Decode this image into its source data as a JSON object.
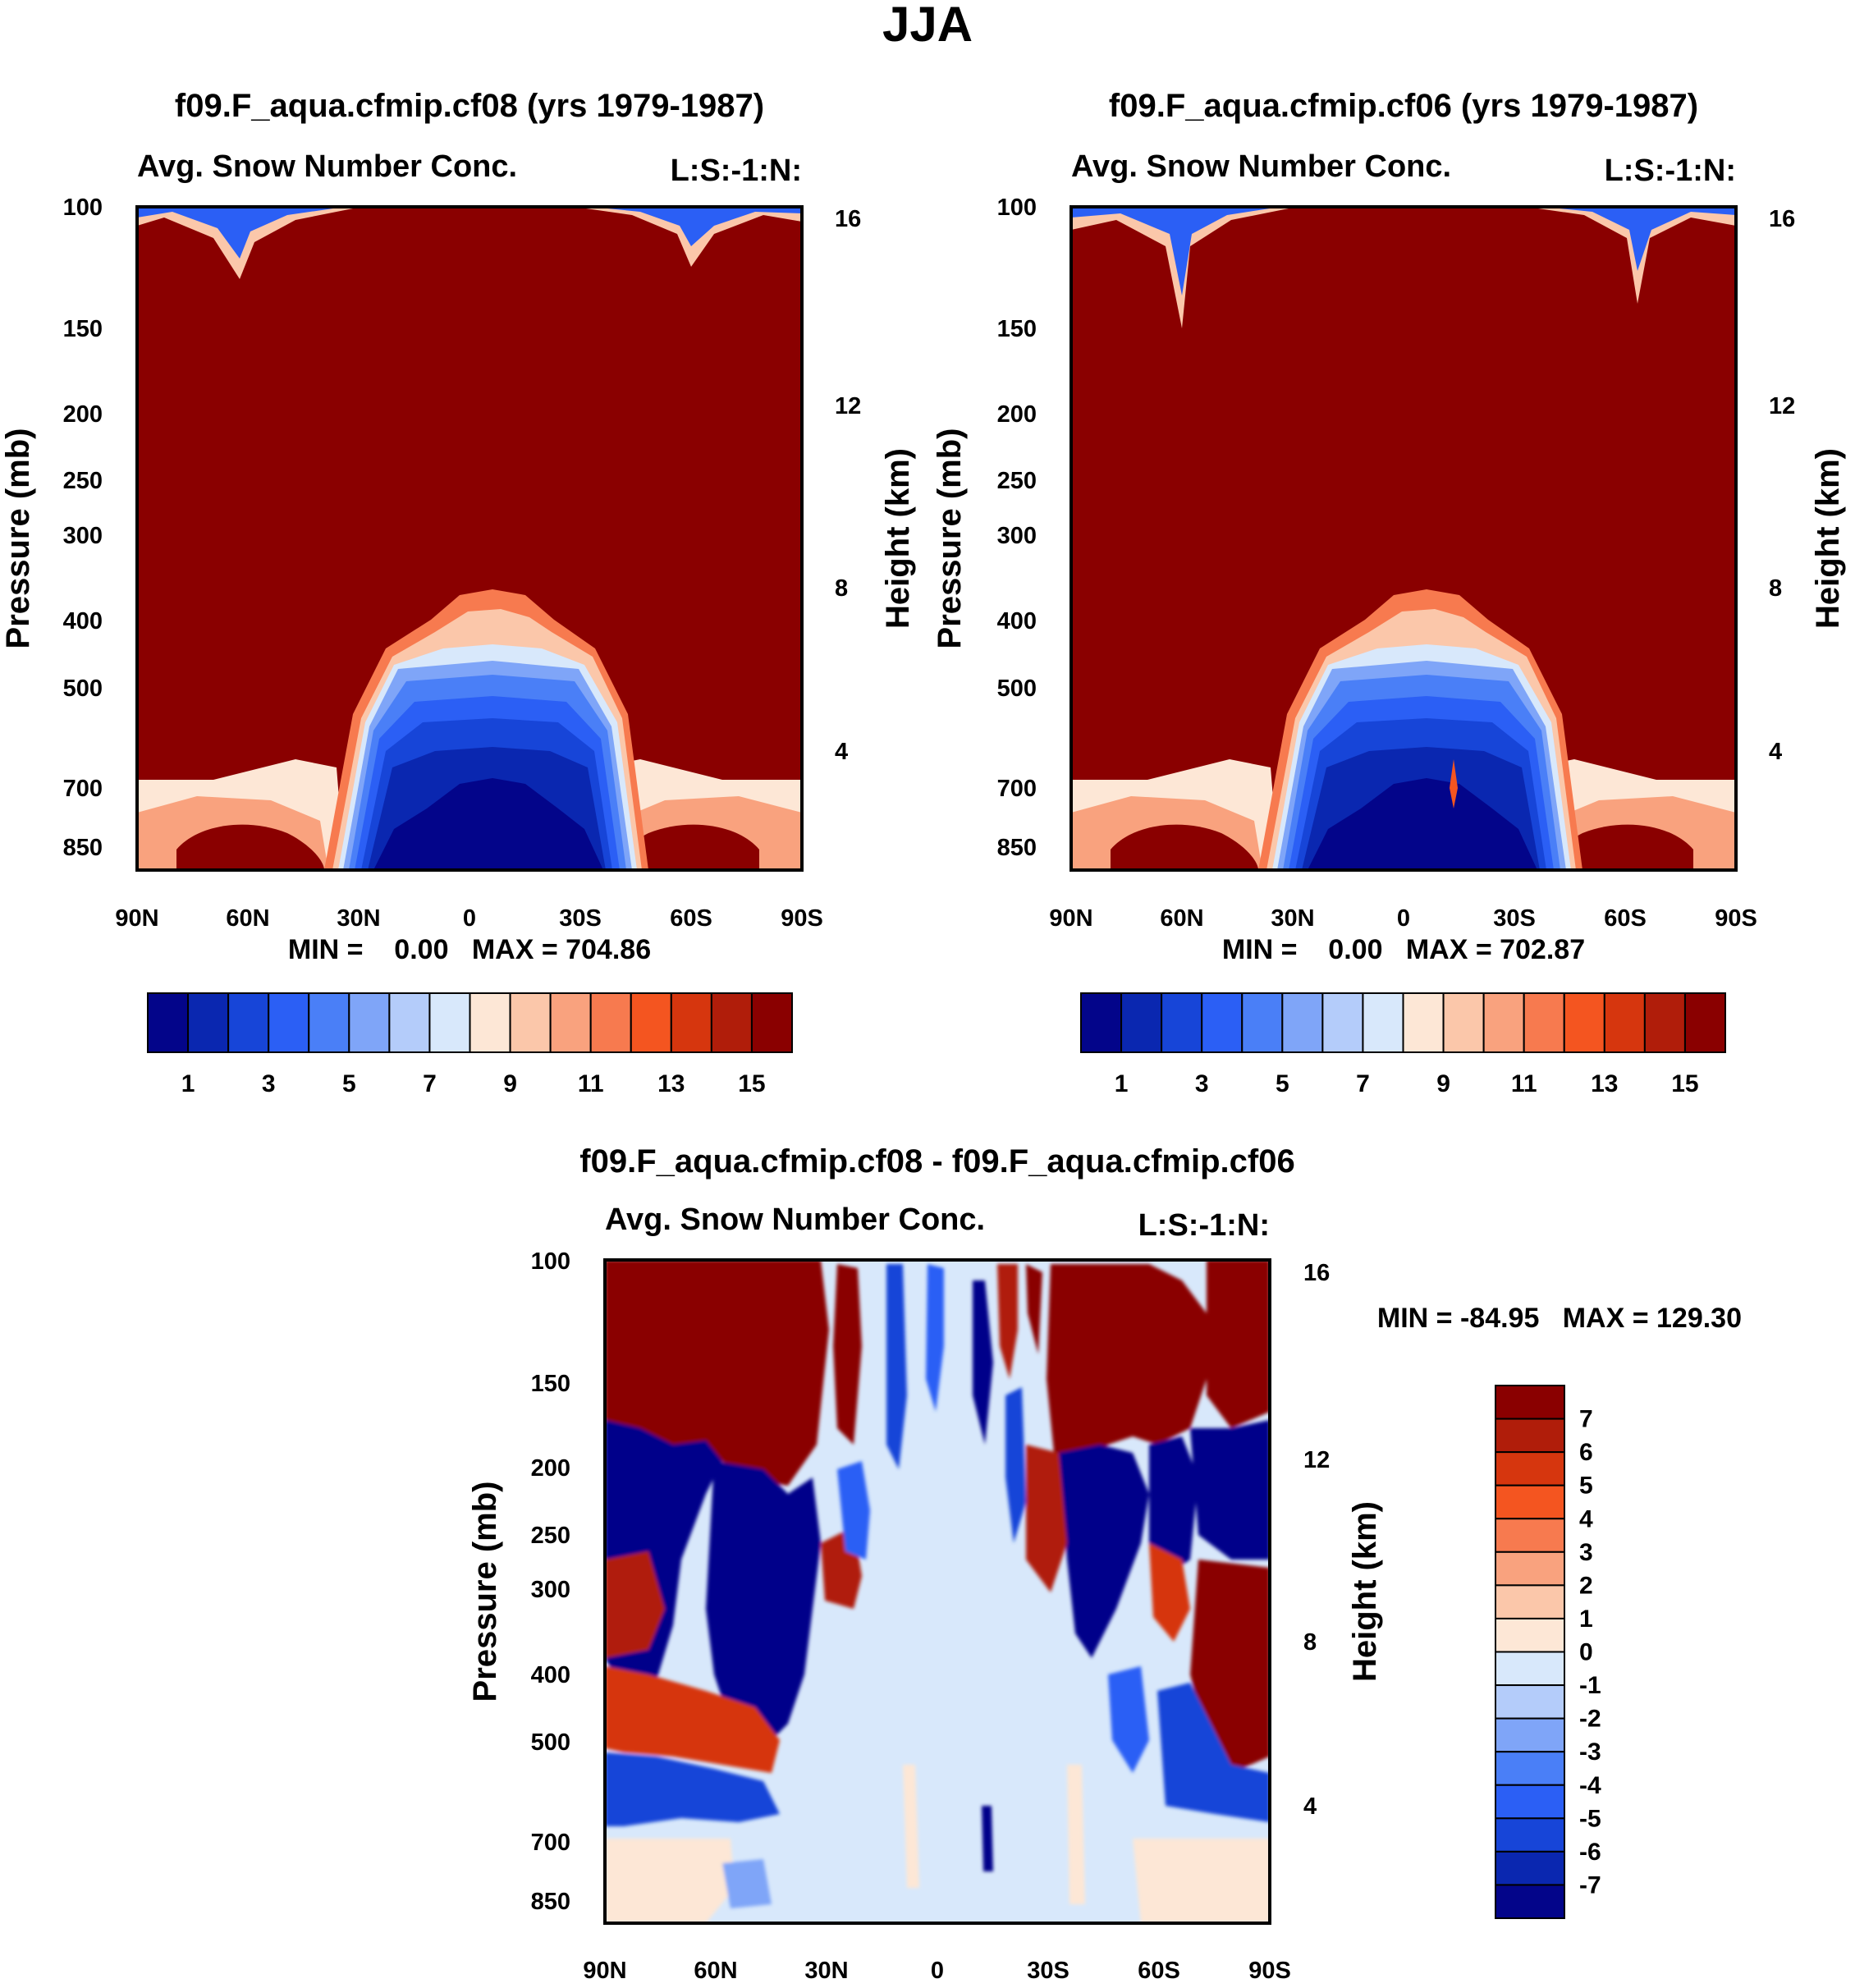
{
  "figure_title": "JJA",
  "chart_data": [
    {
      "type": "heatmap",
      "id": "panel1",
      "title": "f09.F_aqua.cfmip.cf08 (yrs 1979-1987)",
      "subtitle_left": "Avg. Snow Number Conc.",
      "subtitle_right": "L:S:-1:N:",
      "ylabel": "Pressure (mb)",
      "ylabel_right": "Height (km)",
      "x_ticks": [
        "90N",
        "60N",
        "30N",
        "0",
        "30S",
        "60S",
        "90S"
      ],
      "y_ticks": [
        "100",
        "150",
        "200",
        "250",
        "300",
        "400",
        "500",
        "700",
        "850"
      ],
      "y_ticks_right": [
        "16",
        "12",
        "8",
        "4"
      ],
      "min_max_label": "MIN =    0.00   MAX = 704.86",
      "colorbar_labels": [
        "1",
        "3",
        "5",
        "7",
        "9",
        "11",
        "13",
        "15"
      ],
      "colors": [
        "#03058a",
        "#0a27b0",
        "#1745d8",
        "#2b5ff5",
        "#4a7ff7",
        "#7fa5f8",
        "#b4ccfa",
        "#d8e8fb",
        "#fde7d6",
        "#fbc7aa",
        "#f9a27e",
        "#f77a4f",
        "#f45520",
        "#d6360e",
        "#b01d0a",
        "#8a0000"
      ]
    },
    {
      "type": "heatmap",
      "id": "panel2",
      "title": "f09.F_aqua.cfmip.cf06 (yrs 1979-1987)",
      "subtitle_left": "Avg. Snow Number Conc.",
      "subtitle_right": "L:S:-1:N:",
      "ylabel": "Pressure (mb)",
      "ylabel_right": "Height (km)",
      "x_ticks": [
        "90N",
        "60N",
        "30N",
        "0",
        "30S",
        "60S",
        "90S"
      ],
      "y_ticks": [
        "100",
        "150",
        "200",
        "250",
        "300",
        "400",
        "500",
        "700",
        "850"
      ],
      "y_ticks_right": [
        "16",
        "12",
        "8",
        "4"
      ],
      "min_max_label": "MIN =    0.00   MAX = 702.87",
      "colorbar_labels": [
        "1",
        "3",
        "5",
        "7",
        "9",
        "11",
        "13",
        "15"
      ],
      "colors": [
        "#03058a",
        "#0a27b0",
        "#1745d8",
        "#2b5ff5",
        "#4a7ff7",
        "#7fa5f8",
        "#b4ccfa",
        "#d8e8fb",
        "#fde7d6",
        "#fbc7aa",
        "#f9a27e",
        "#f77a4f",
        "#f45520",
        "#d6360e",
        "#b01d0a",
        "#8a0000"
      ]
    },
    {
      "type": "heatmap",
      "id": "panel3",
      "title": "f09.F_aqua.cfmip.cf08 - f09.F_aqua.cfmip.cf06",
      "subtitle_left": "Avg. Snow Number Conc.",
      "subtitle_right": "L:S:-1:N:",
      "ylabel": "Pressure (mb)",
      "ylabel_right": "Height (km)",
      "x_ticks": [
        "90N",
        "60N",
        "30N",
        "0",
        "30S",
        "60S",
        "90S"
      ],
      "y_ticks": [
        "100",
        "150",
        "200",
        "250",
        "300",
        "400",
        "500",
        "700",
        "850"
      ],
      "y_ticks_right": [
        "16",
        "12",
        "8",
        "4"
      ],
      "min_max_label": "MIN = -84.95   MAX = 129.30",
      "colorbar_labels": [
        "7",
        "6",
        "5",
        "4",
        "3",
        "2",
        "1",
        "0",
        "-1",
        "-2",
        "-3",
        "-4",
        "-5",
        "-6",
        "-7"
      ],
      "colors": [
        "#8a0000",
        "#b01d0a",
        "#d6360e",
        "#f45520",
        "#f77a4f",
        "#f9a27e",
        "#fbc7aa",
        "#fde7d6",
        "#d8e8fb",
        "#b4ccfa",
        "#7fa5f8",
        "#4a7ff7",
        "#2b5ff5",
        "#1745d8",
        "#0a27b0",
        "#03058a"
      ]
    }
  ]
}
